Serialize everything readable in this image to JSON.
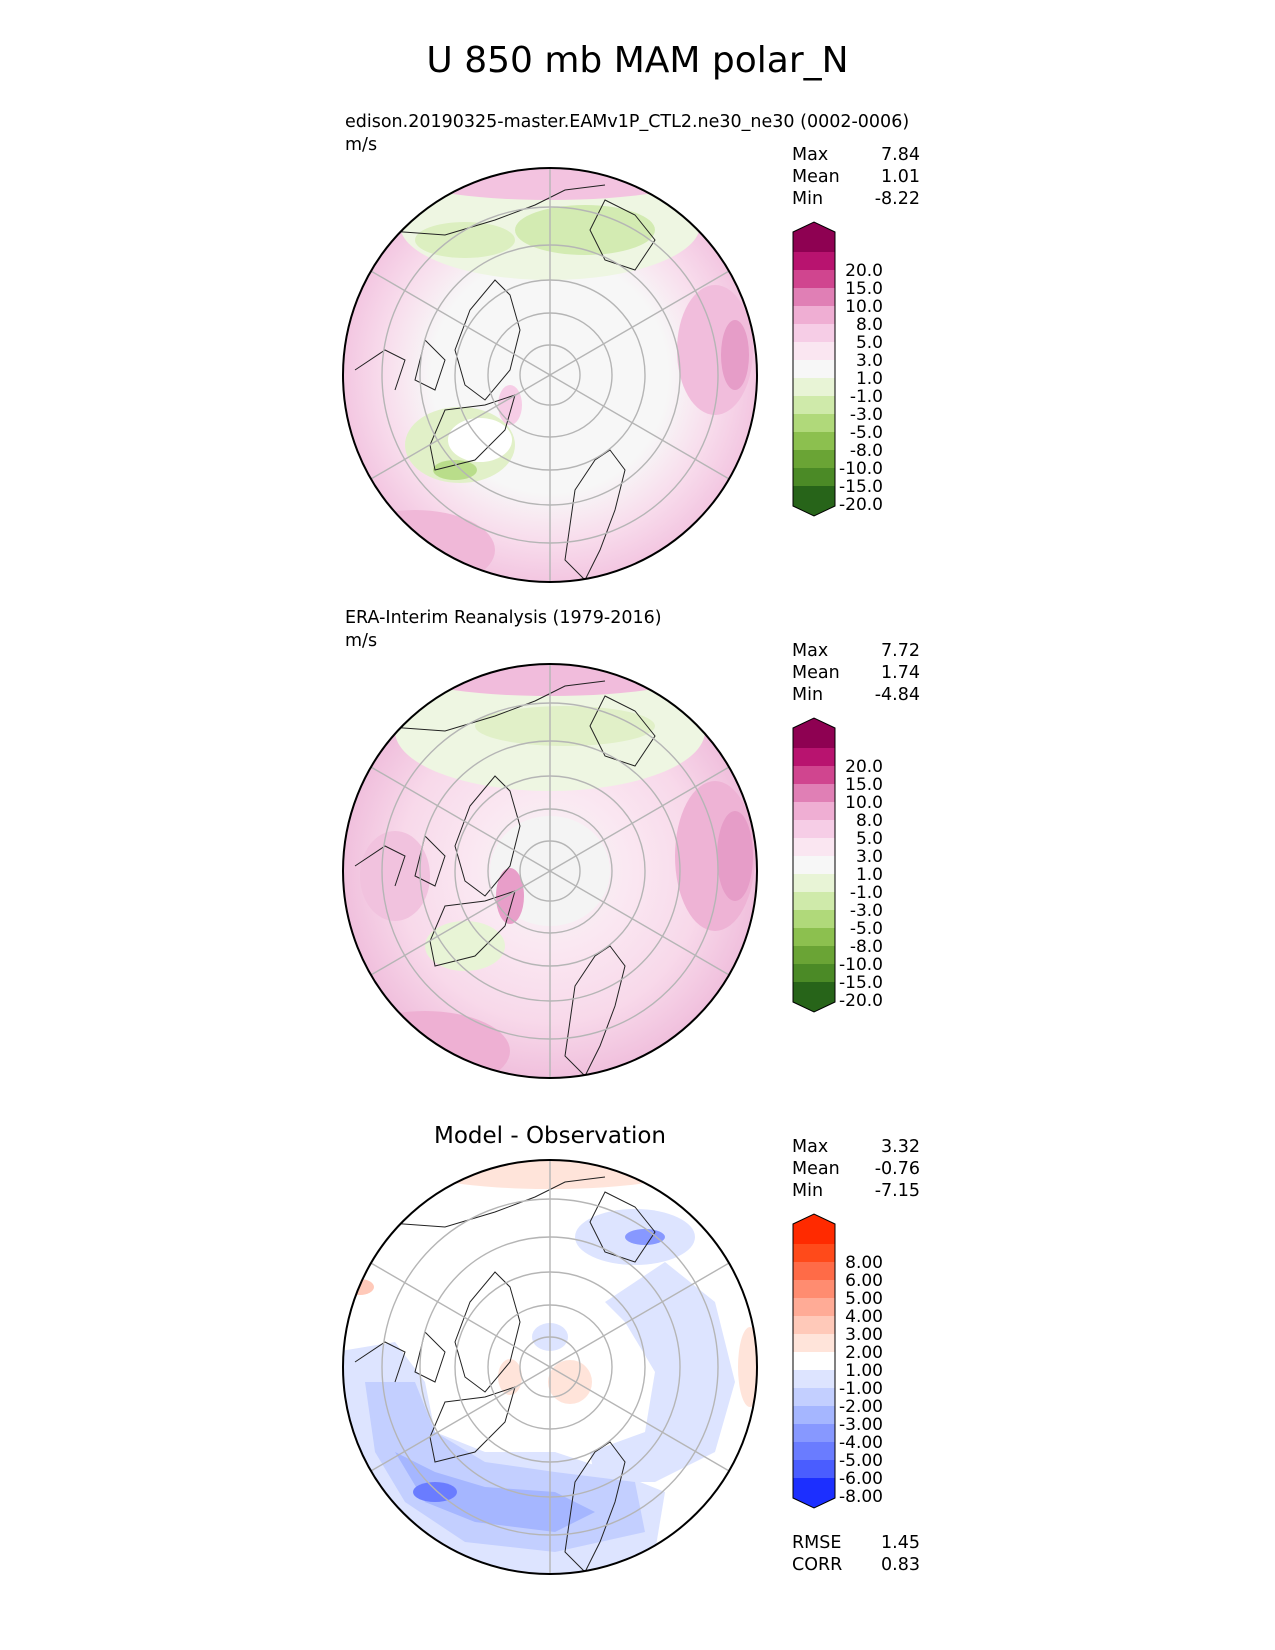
{
  "figure": {
    "title": "U 850 mb MAM polar_N"
  },
  "chart_data": [
    {
      "type": "heatmap",
      "projection": "north polar stereographic",
      "title": "edison.20190325-master.EAMv1P_CTL2.ne30_ne30 (0002-0006)",
      "units": "m/s",
      "stats": [
        {
          "label": "Max",
          "value": "7.84"
        },
        {
          "label": "Mean",
          "value": "1.01"
        },
        {
          "label": "Min",
          "value": "-8.22"
        }
      ],
      "colorbar": {
        "levels": [
          "20.0",
          "15.0",
          "10.0",
          "8.0",
          "5.0",
          "3.0",
          "1.0",
          "-1.0",
          "-3.0",
          "-5.0",
          "-8.0",
          "-10.0",
          "-15.0",
          "-20.0"
        ],
        "colors": [
          "#8e0152",
          "#b8136f",
          "#d0458f",
          "#e07fb5",
          "#efaed3",
          "#f6cde6",
          "#fae6f1",
          "#f7f7f7",
          "#e8f4d6",
          "#cfeaaa",
          "#b0d97a",
          "#8cc04f",
          "#6aa435",
          "#4b8a26",
          "#276419"
        ]
      }
    },
    {
      "type": "heatmap",
      "projection": "north polar stereographic",
      "title": "ERA-Interim Reanalysis (1979-2016)",
      "units": "m/s",
      "stats": [
        {
          "label": "Max",
          "value": "7.72"
        },
        {
          "label": "Mean",
          "value": "1.74"
        },
        {
          "label": "Min",
          "value": "-4.84"
        }
      ],
      "colorbar": {
        "levels": [
          "20.0",
          "15.0",
          "10.0",
          "8.0",
          "5.0",
          "3.0",
          "1.0",
          "-1.0",
          "-3.0",
          "-5.0",
          "-8.0",
          "-10.0",
          "-15.0",
          "-20.0"
        ],
        "colors": [
          "#8e0152",
          "#b8136f",
          "#d0458f",
          "#e07fb5",
          "#efaed3",
          "#f6cde6",
          "#fae6f1",
          "#f7f7f7",
          "#e8f4d6",
          "#cfeaaa",
          "#b0d97a",
          "#8cc04f",
          "#6aa435",
          "#4b8a26",
          "#276419"
        ]
      }
    },
    {
      "type": "heatmap",
      "projection": "north polar stereographic",
      "title": "Model - Observation",
      "units": "",
      "stats": [
        {
          "label": "Max",
          "value": "3.32"
        },
        {
          "label": "Mean",
          "value": "-0.76"
        },
        {
          "label": "Min",
          "value": "-7.15"
        }
      ],
      "metrics": [
        {
          "label": "RMSE",
          "value": "1.45"
        },
        {
          "label": "CORR",
          "value": "0.83"
        }
      ],
      "colorbar": {
        "levels": [
          "8.00",
          "6.00",
          "5.00",
          "4.00",
          "3.00",
          "2.00",
          "1.00",
          "-1.00",
          "-2.00",
          "-3.00",
          "-4.00",
          "-5.00",
          "-6.00",
          "-8.00"
        ],
        "colors": [
          "#ff2a00",
          "#ff4a1a",
          "#ff6b47",
          "#ff8c70",
          "#ffab96",
          "#ffc9b9",
          "#ffe4da",
          "#ffffff",
          "#dde4ff",
          "#c3cfff",
          "#a5b6ff",
          "#8798ff",
          "#6a7cff",
          "#4a5dff",
          "#1c2fff"
        ]
      }
    }
  ]
}
